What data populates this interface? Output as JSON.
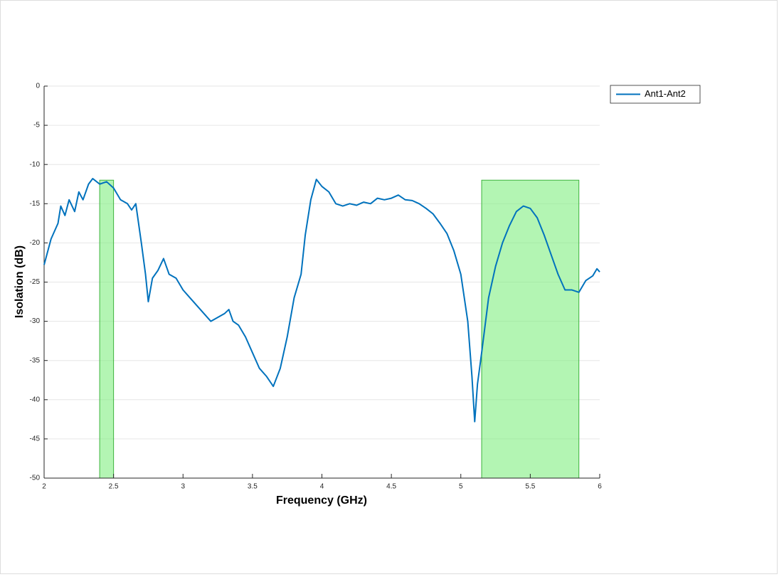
{
  "chart_data": {
    "type": "line",
    "x_label": "Frequency (GHz)",
    "y_label": "Isolation (dB)",
    "x": [
      2.0,
      2.05,
      2.1,
      2.12,
      2.15,
      2.18,
      2.22,
      2.25,
      2.28,
      2.32,
      2.35,
      2.4,
      2.45,
      2.5,
      2.55,
      2.6,
      2.63,
      2.66,
      2.7,
      2.73,
      2.75,
      2.78,
      2.82,
      2.86,
      2.9,
      2.95,
      3.0,
      3.05,
      3.1,
      3.15,
      3.2,
      3.25,
      3.3,
      3.33,
      3.36,
      3.4,
      3.45,
      3.5,
      3.55,
      3.6,
      3.65,
      3.7,
      3.75,
      3.8,
      3.85,
      3.88,
      3.92,
      3.96,
      4.0,
      4.05,
      4.1,
      4.15,
      4.2,
      4.25,
      4.3,
      4.35,
      4.4,
      4.45,
      4.5,
      4.55,
      4.6,
      4.65,
      4.7,
      4.75,
      4.8,
      4.85,
      4.9,
      4.95,
      5.0,
      5.05,
      5.08,
      5.1,
      5.12,
      5.15,
      5.2,
      5.25,
      5.3,
      5.35,
      5.4,
      5.45,
      5.5,
      5.55,
      5.6,
      5.65,
      5.7,
      5.75,
      5.8,
      5.85,
      5.9,
      5.95,
      5.98,
      6.0
    ],
    "series": [
      {
        "name": "Ant1-Ant2",
        "color": "#0072bd",
        "values": [
          -22.8,
          -19.5,
          -17.5,
          -15.3,
          -16.5,
          -14.5,
          -16,
          -13.5,
          -14.5,
          -12.5,
          -11.8,
          -12.5,
          -12.2,
          -13,
          -14.5,
          -15,
          -15.8,
          -15,
          -20,
          -24,
          -27.5,
          -24.5,
          -23.5,
          -22,
          -24,
          -24.5,
          -26,
          -27,
          -28,
          -29,
          -30,
          -29.5,
          -29,
          -28.5,
          -30,
          -30.5,
          -32,
          -34,
          -36,
          -37,
          -38.3,
          -36,
          -32,
          -27,
          -24,
          -19,
          -14.5,
          -11.9,
          -12.8,
          -13.5,
          -15,
          -15.3,
          -15,
          -15.2,
          -14.8,
          -15,
          -14.3,
          -14.5,
          -14.3,
          -13.9,
          -14.5,
          -14.6,
          -15,
          -15.6,
          -16.3,
          -17.5,
          -18.8,
          -21,
          -24,
          -30,
          -37,
          -42.8,
          -38,
          -34,
          -27,
          -23,
          -20,
          -17.8,
          -16,
          -15.3,
          -15.6,
          -16.8,
          -19,
          -21.5,
          -24,
          -26,
          -26,
          -26.3,
          -24.8,
          -24.2,
          -23.3,
          -23.7
        ]
      }
    ],
    "shaded_regions": [
      {
        "x": [
          2.4,
          2.5
        ],
        "y": [
          -50,
          -12
        ],
        "color": "#80ee80"
      },
      {
        "x": [
          5.15,
          5.85
        ],
        "y": [
          -50,
          -12
        ],
        "color": "#80ee80"
      }
    ],
    "xlim": [
      2,
      6
    ],
    "ylim": [
      -50,
      0
    ],
    "xticks": [
      2,
      2.5,
      3,
      3.5,
      4,
      4.5,
      5,
      5.5,
      6
    ],
    "yticks": [
      -50,
      -45,
      -40,
      -35,
      -30,
      -25,
      -20,
      -15,
      -10,
      -5,
      0
    ],
    "grid": "y",
    "legend": "outside-top-right"
  }
}
